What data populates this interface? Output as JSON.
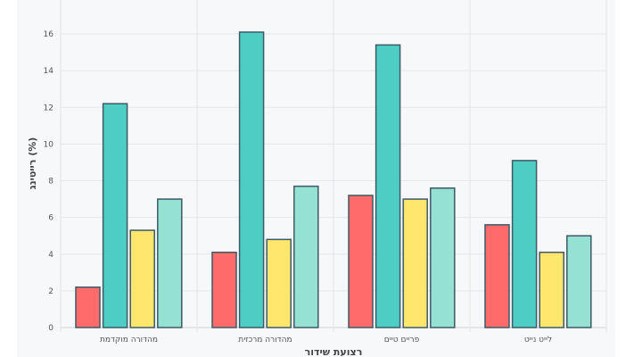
{
  "chart_data": {
    "type": "bar",
    "title": "",
    "xlabel": "רצועת שידור",
    "ylabel": "רייטינג (%)",
    "categories": [
      "מהדורה מוקדמת",
      "מהדורה מרכזית",
      "פריים טיים",
      "לייט נייט"
    ],
    "series": [
      {
        "values": [
          2.2,
          4.1,
          7.2,
          5.6
        ],
        "color": "#ff6b6b"
      },
      {
        "values": [
          12.2,
          16.1,
          15.4,
          9.1
        ],
        "color": "#4ecdc4"
      },
      {
        "values": [
          5.3,
          4.8,
          7.0,
          4.1
        ],
        "color": "#ffe66d"
      },
      {
        "values": [
          7.0,
          7.7,
          7.6,
          5.0
        ],
        "color": "#95e1d3"
      }
    ],
    "ylim": [
      0,
      17.85
    ],
    "yticks": [
      0,
      2,
      4,
      6,
      8,
      10,
      12,
      14,
      16
    ],
    "grid": true,
    "legend": "none",
    "bar_outline_color": "#3d5a66"
  }
}
